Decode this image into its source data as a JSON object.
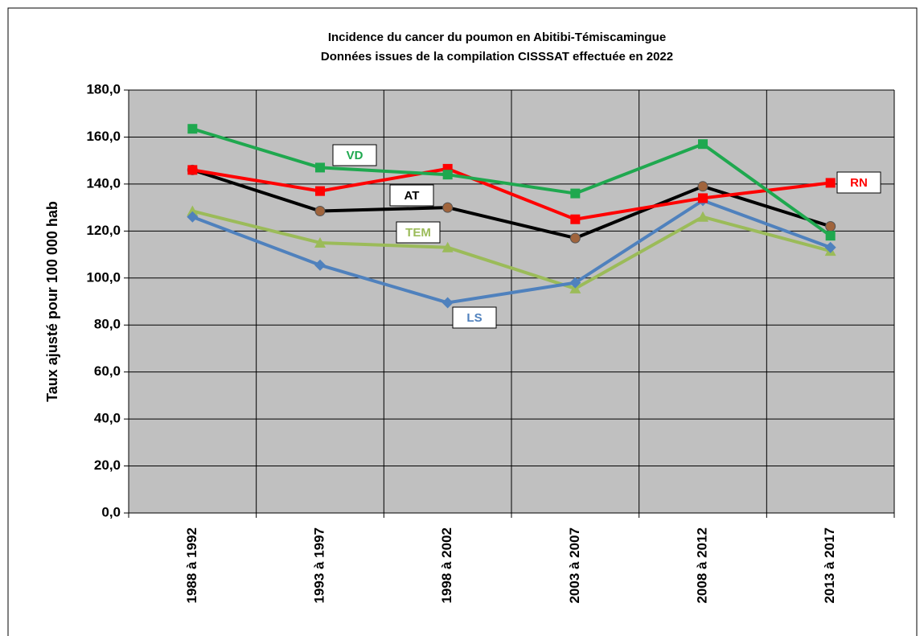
{
  "chart_data": {
    "type": "line",
    "title": "Incidence du cancer du poumon en Abitibi-Témiscamingue",
    "subtitle": "Données issues de la compilation CISSSAT effectuée en 2022",
    "y_label": "Taux ajusté pour 100 000 hab",
    "categories": [
      "1988 à 1992",
      "1993 à 1997",
      "1998 à 2002",
      "2003 à 2007",
      "2008 à 2012",
      "2013 à 2017"
    ],
    "series": [
      {
        "name": "VD",
        "color": "#1fa84f",
        "marker": "square",
        "values": [
          163.5,
          147,
          144,
          136,
          157,
          118
        ]
      },
      {
        "name": "RN",
        "color": "#ff0000",
        "marker": "square",
        "values": [
          146,
          137,
          146.5,
          125,
          134,
          140.5
        ]
      },
      {
        "name": "AT",
        "color": "#000000",
        "marker": "circle",
        "values": [
          146,
          128.5,
          130,
          117,
          139,
          122
        ]
      },
      {
        "name": "TEM",
        "color": "#9bbb59",
        "marker": "triangle",
        "values": [
          128.5,
          115,
          113,
          95.5,
          126,
          111.5
        ]
      },
      {
        "name": "LS",
        "color": "#4f81bd",
        "marker": "diamond",
        "values": [
          126,
          105.5,
          89.5,
          98,
          133,
          113
        ]
      }
    ],
    "ylim": [
      0,
      180
    ],
    "yticks": [
      {
        "value": 0,
        "label": "0,0"
      },
      {
        "value": 20,
        "label": "20,0"
      },
      {
        "value": 40,
        "label": "40,0"
      },
      {
        "value": 60,
        "label": "60,0"
      },
      {
        "value": 80,
        "label": "80,0"
      },
      {
        "value": 100,
        "label": "100,0"
      },
      {
        "value": 120,
        "label": "120,0"
      },
      {
        "value": 140,
        "label": "140,0"
      },
      {
        "value": 160,
        "label": "160,0"
      },
      {
        "value": 180,
        "label": "180,0"
      }
    ],
    "grid": true
  }
}
